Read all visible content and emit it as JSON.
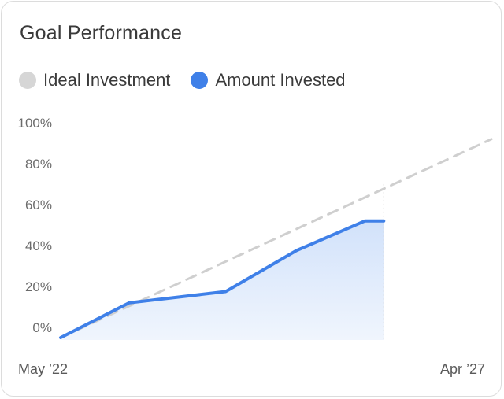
{
  "card": {
    "title": "Goal Performance"
  },
  "legend": [
    {
      "label": "Ideal Investment",
      "color": "#d6d6d6"
    },
    {
      "label": "Amount Invested",
      "color": "#3f80e8"
    }
  ],
  "chart_data": {
    "type": "line",
    "title": "Goal Performance",
    "y_ticks": [
      "100%",
      "80%",
      "60%",
      "40%",
      "20%",
      "0%"
    ],
    "y_tick_values": [
      100,
      80,
      60,
      40,
      20,
      0
    ],
    "ylim": [
      0,
      100
    ],
    "x_labels": [
      "May ’22",
      "Apr ’27"
    ],
    "grid": false,
    "legend_position": "top-left",
    "series": [
      {
        "name": "Ideal Investment",
        "style": "dashed",
        "color": "#cfcfcf",
        "x": [
          0,
          1
        ],
        "values": [
          -5,
          92
        ]
      },
      {
        "name": "Amount Invested",
        "style": "solid",
        "color": "#3f80e8",
        "fill": "#dce8fb",
        "x": [
          0,
          0.159,
          0.383,
          0.547,
          0.706,
          0.75
        ],
        "values": [
          -5,
          12,
          17.5,
          37.5,
          52,
          52
        ]
      }
    ]
  }
}
